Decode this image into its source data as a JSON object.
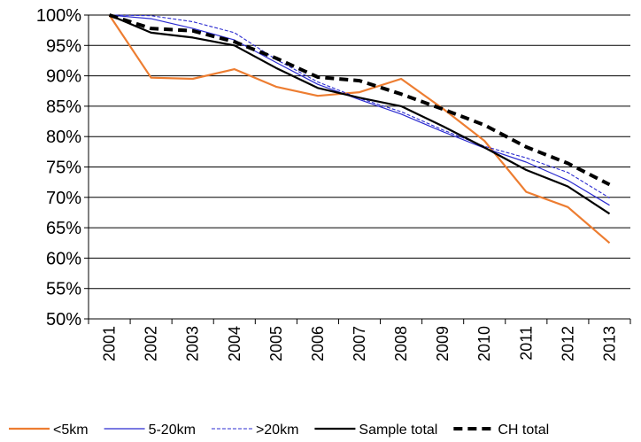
{
  "chart_data": {
    "type": "line",
    "title": "",
    "xlabel": "",
    "ylabel": "",
    "x": [
      "2001",
      "2002",
      "2003",
      "2004",
      "2005",
      "2006",
      "2007",
      "2008",
      "2009",
      "2010",
      "2011",
      "2012",
      "2013"
    ],
    "ylim": [
      50,
      100
    ],
    "yticks": [
      "50%",
      "55%",
      "60%",
      "65%",
      "70%",
      "75%",
      "80%",
      "85%",
      "90%",
      "95%",
      "100%"
    ],
    "grid": true,
    "legend_position": "bottom",
    "series": [
      {
        "name": "<5km",
        "color": "#ED7D31",
        "style": "solid",
        "width": 2.2,
        "values": [
          100,
          89.7,
          89.5,
          91.1,
          88.2,
          86.7,
          87.3,
          89.5,
          84.6,
          79.3,
          70.9,
          68.4,
          62.5
        ]
      },
      {
        "name": "5-20km",
        "color": "#2B2BD0",
        "style": "solid",
        "width": 1.2,
        "values": [
          100,
          99.4,
          97.8,
          95.9,
          92.2,
          88.6,
          86.1,
          83.7,
          80.8,
          78.1,
          75.8,
          72.8,
          68.7
        ]
      },
      {
        "name": ">20km",
        "color": "#2B2BD0",
        "style": "dashed-thin",
        "width": 1.1,
        "values": [
          100,
          99.9,
          98.9,
          97.1,
          92.7,
          89.0,
          86.3,
          84.1,
          81.1,
          78.4,
          76.5,
          74.1,
          69.9
        ]
      },
      {
        "name": "Sample total",
        "color": "#000000",
        "style": "solid",
        "width": 2.2,
        "values": [
          100,
          97.1,
          96.3,
          95.0,
          91.3,
          88.0,
          86.4,
          85.0,
          81.7,
          78.2,
          74.5,
          71.8,
          67.3
        ]
      },
      {
        "name": "CH total",
        "color": "#000000",
        "style": "dashed",
        "width": 4,
        "values": [
          100,
          97.8,
          97.4,
          95.6,
          92.9,
          89.8,
          89.2,
          87.0,
          84.5,
          81.9,
          78.3,
          75.6,
          72.1
        ]
      }
    ]
  }
}
